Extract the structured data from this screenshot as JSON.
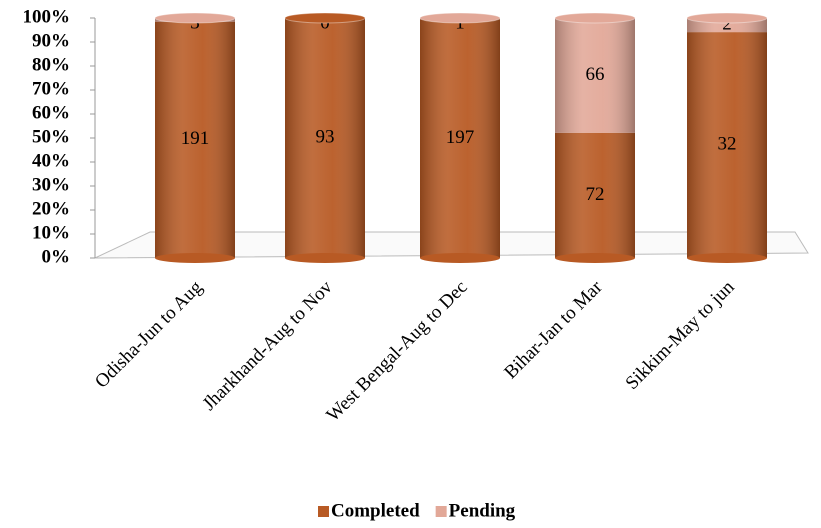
{
  "chart_data": {
    "type": "bar",
    "stacking": "percent",
    "categories": [
      "Odisha-Jun to Aug",
      "Jharkhand-Aug to Nov",
      "West Bengal-Aug to Dec",
      "Bihar-Jan to Mar",
      "Sikkim-May to jun"
    ],
    "series": [
      {
        "name": "Completed",
        "color": "#b85a24",
        "values": [
          191,
          93,
          197,
          72,
          32
        ]
      },
      {
        "name": "Pending",
        "color": "#e2a898",
        "values": [
          3,
          0,
          1,
          66,
          2
        ]
      }
    ],
    "ylim": [
      0,
      100
    ],
    "yticks": [
      {
        "value": 0,
        "label": "0%"
      },
      {
        "value": 10,
        "label": "10%"
      },
      {
        "value": 20,
        "label": "20%"
      },
      {
        "value": 30,
        "label": "30%"
      },
      {
        "value": 40,
        "label": "40%"
      },
      {
        "value": 50,
        "label": "50%"
      },
      {
        "value": 60,
        "label": "60%"
      },
      {
        "value": 70,
        "label": "70%"
      },
      {
        "value": 80,
        "label": "80%"
      },
      {
        "value": 90,
        "label": "90%"
      },
      {
        "value": 100,
        "label": "100%"
      }
    ],
    "legend": "bottom"
  }
}
